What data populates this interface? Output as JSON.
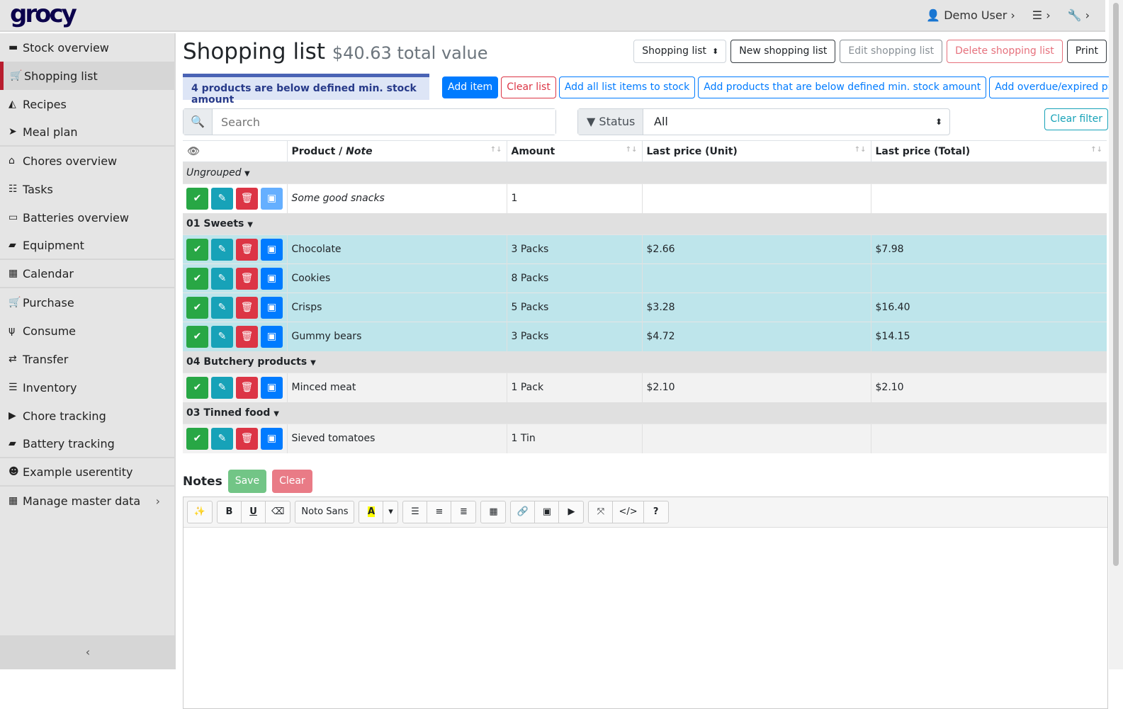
{
  "app": {
    "logo": "grocy",
    "user": "Demo User"
  },
  "sidebar": {
    "items": [
      {
        "label": "Stock overview",
        "icon": "box-icon"
      },
      {
        "label": "Shopping list",
        "icon": "cart-icon",
        "active": true
      },
      {
        "label": "Recipes",
        "icon": "pizza-icon"
      },
      {
        "label": "Meal plan",
        "icon": "paper-plane-icon"
      },
      {
        "label": "Chores overview",
        "icon": "home-icon"
      },
      {
        "label": "Tasks",
        "icon": "tasks-icon"
      },
      {
        "label": "Batteries overview",
        "icon": "battery-icon"
      },
      {
        "label": "Equipment",
        "icon": "toolbox-icon"
      },
      {
        "label": "Calendar",
        "icon": "calendar-icon"
      },
      {
        "label": "Purchase",
        "icon": "cart-plus-icon"
      },
      {
        "label": "Consume",
        "icon": "utensils-icon"
      },
      {
        "label": "Transfer",
        "icon": "exchange-icon"
      },
      {
        "label": "Inventory",
        "icon": "list-icon"
      },
      {
        "label": "Chore tracking",
        "icon": "play-icon"
      },
      {
        "label": "Battery tracking",
        "icon": "car-battery-icon"
      },
      {
        "label": "Example userentity",
        "icon": "smile-icon"
      },
      {
        "label": "Manage master data",
        "icon": "table-icon"
      }
    ]
  },
  "page": {
    "title": "Shopping list",
    "total": "$40.63 total value",
    "list_select": "Shopping list",
    "new": "New shopping list",
    "edit": "Edit shopping list",
    "delete": "Delete shopping list",
    "print": "Print"
  },
  "alert": "4 products are below defined min. stock amount",
  "actions": {
    "add_item": "Add item",
    "clear_list": "Clear list",
    "add_all": "Add all list items to stock",
    "add_below": "Add products that are below defined min. stock amount",
    "add_overdue": "Add overdue/expired products"
  },
  "filter": {
    "search_placeholder": "Search",
    "status_label": "Status",
    "status_value": "All",
    "clear": "Clear filter"
  },
  "table": {
    "headers": {
      "product": "Product",
      "note": "Note",
      "amount": "Amount",
      "unit": "Last price (Unit)",
      "total": "Last price (Total)"
    },
    "groups": [
      {
        "name": "Ungrouped",
        "italic": true,
        "rows": [
          {
            "product": "Some good snacks",
            "note": true,
            "amount": "1",
            "unit": "",
            "total": "",
            "style": "plain"
          }
        ]
      },
      {
        "name": "01 Sweets",
        "rows": [
          {
            "product": "Chocolate",
            "amount": "3 Packs",
            "unit": "$2.66",
            "total": "$7.98",
            "style": "info"
          },
          {
            "product": "Cookies",
            "amount": "8 Packs",
            "unit": "",
            "total": "",
            "style": "info"
          },
          {
            "product": "Crisps",
            "amount": "5 Packs",
            "unit": "$3.28",
            "total": "$16.40",
            "style": "info"
          },
          {
            "product": "Gummy bears",
            "amount": "3 Packs",
            "unit": "$4.72",
            "total": "$14.15",
            "style": "info"
          }
        ]
      },
      {
        "name": "04 Butchery products",
        "rows": [
          {
            "product": "Minced meat",
            "amount": "1 Pack",
            "unit": "$2.10",
            "total": "$2.10",
            "style": "striped"
          }
        ]
      },
      {
        "name": "03 Tinned food",
        "rows": [
          {
            "product": "Sieved tomatoes",
            "amount": "1 Tin",
            "unit": "",
            "total": "",
            "style": "striped"
          }
        ]
      }
    ]
  },
  "notes": {
    "label": "Notes",
    "save": "Save",
    "clear": "Clear",
    "font": "Noto Sans"
  },
  "colors": {
    "success": "#28a745",
    "info": "#17a2b8",
    "danger": "#dc3545",
    "primary": "#007bff"
  }
}
